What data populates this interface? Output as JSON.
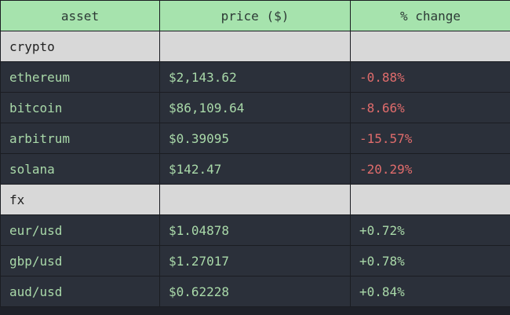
{
  "columns": [
    "asset",
    "price ($)",
    "% change"
  ],
  "colors": {
    "header_bg": "#a6e3ad",
    "group_bg": "#d8d8d8",
    "row_bg": "#2b303a",
    "text_green": "#a9d9a9",
    "negative_red": "#e06c6c"
  },
  "groups": [
    {
      "name": "crypto",
      "rows": [
        {
          "asset": "ethereum",
          "price": "$2,143.62",
          "change": "-0.88%",
          "direction": "negative"
        },
        {
          "asset": "bitcoin",
          "price": "$86,109.64",
          "change": "-8.66%",
          "direction": "negative"
        },
        {
          "asset": "arbitrum",
          "price": "$0.39095",
          "change": "-15.57%",
          "direction": "negative"
        },
        {
          "asset": "solana",
          "price": "$142.47",
          "change": "-20.29%",
          "direction": "negative"
        }
      ]
    },
    {
      "name": "fx",
      "rows": [
        {
          "asset": "eur/usd",
          "price": "$1.04878",
          "change": "+0.72%",
          "direction": "positive"
        },
        {
          "asset": "gbp/usd",
          "price": "$1.27017",
          "change": "+0.78%",
          "direction": "positive"
        },
        {
          "asset": "aud/usd",
          "price": "$0.62228",
          "change": "+0.84%",
          "direction": "positive"
        }
      ]
    }
  ]
}
